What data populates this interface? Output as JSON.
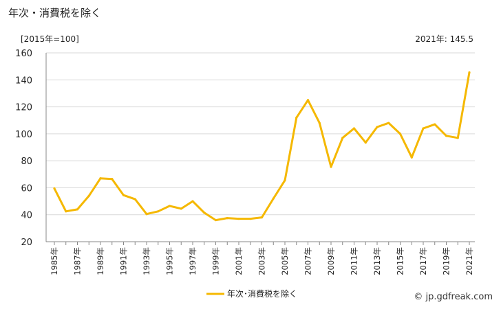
{
  "header": {
    "title": "年次・消費税を除く",
    "unit": "[2015年=100]",
    "latest": "2021年: 145.5"
  },
  "footer": {
    "credit": "© jp.gdfreak.com"
  },
  "colors": {
    "line": "#f5b800",
    "grid": "#d9d9d9",
    "axis": "#888888"
  },
  "chart_data": {
    "type": "line",
    "ylim": [
      20,
      160
    ],
    "yticks": [
      20,
      40,
      60,
      80,
      100,
      120,
      140,
      160
    ],
    "x": [
      "1985年",
      "1986年",
      "1987年",
      "1988年",
      "1989年",
      "1990年",
      "1991年",
      "1992年",
      "1993年",
      "1994年",
      "1995年",
      "1996年",
      "1997年",
      "1998年",
      "1999年",
      "2000年",
      "2001年",
      "2002年",
      "2003年",
      "2004年",
      "2005年",
      "2006年",
      "2007年",
      "2008年",
      "2009年",
      "2010年",
      "2011年",
      "2012年",
      "2013年",
      "2014年",
      "2015年",
      "2016年",
      "2017年",
      "2018年",
      "2019年",
      "2020年",
      "2021年"
    ],
    "xtick_labels": [
      "1985年",
      "1987年",
      "1989年",
      "1991年",
      "1993年",
      "1995年",
      "1997年",
      "1999年",
      "2001年",
      "2003年",
      "2005年",
      "2007年",
      "2009年",
      "2011年",
      "2013年",
      "2015年",
      "2017年",
      "2019年",
      "2021年"
    ],
    "series": [
      {
        "name": "年次･消費税を除く",
        "values": [
          59.5,
          42.5,
          44,
          54,
          67,
          66.5,
          54.5,
          51.5,
          40.5,
          42.5,
          46.5,
          44.5,
          50,
          41.5,
          36,
          37.5,
          37,
          37,
          38,
          52,
          65.5,
          112,
          125,
          108,
          75.5,
          97,
          104,
          93.5,
          105,
          108,
          100,
          82.5,
          104,
          107,
          98.5,
          97,
          145.5
        ]
      }
    ],
    "legend_position": "bottom"
  }
}
